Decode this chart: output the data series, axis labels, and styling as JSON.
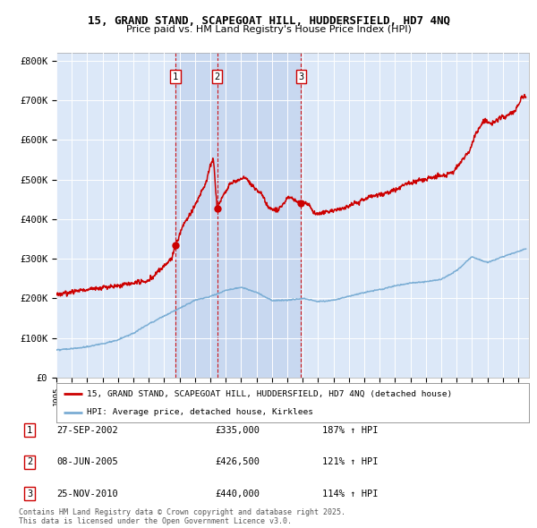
{
  "title_line1": "15, GRAND STAND, SCAPEGOAT HILL, HUDDERSFIELD, HD7 4NQ",
  "title_line2": "Price paid vs. HM Land Registry's House Price Index (HPI)",
  "plot_bg_color": "#dce8f8",
  "ylabel_ticks": [
    "£0",
    "£100K",
    "£200K",
    "£300K",
    "£400K",
    "£500K",
    "£600K",
    "£700K",
    "£800K"
  ],
  "ytick_values": [
    0,
    100000,
    200000,
    300000,
    400000,
    500000,
    600000,
    700000,
    800000
  ],
  "ylim": [
    0,
    820000
  ],
  "xlim_start": 1995.0,
  "xlim_end": 2025.7,
  "legend_line1": "15, GRAND STAND, SCAPEGOAT HILL, HUDDERSFIELD, HD7 4NQ (detached house)",
  "legend_line2": "HPI: Average price, detached house, Kirklees",
  "transactions": [
    {
      "num": 1,
      "date": "27-SEP-2002",
      "price": 335000,
      "hpi_pct": "187%",
      "x": 2002.74
    },
    {
      "num": 2,
      "date": "08-JUN-2005",
      "price": 426500,
      "hpi_pct": "121%",
      "x": 2005.44
    },
    {
      "num": 3,
      "date": "25-NOV-2010",
      "price": 440000,
      "hpi_pct": "114%",
      "x": 2010.9
    }
  ],
  "footnote": "Contains HM Land Registry data © Crown copyright and database right 2025.\nThis data is licensed under the Open Government Licence v3.0.",
  "red_color": "#cc0000",
  "blue_color": "#7aadd4",
  "grid_color": "#ffffff",
  "vline_color": "#cc0000",
  "shade_color": "#c8d8f0",
  "hpi_knots_x": [
    1995,
    1996,
    1997,
    1998,
    1999,
    2000,
    2001,
    2002,
    2003,
    2004,
    2005,
    2006,
    2007,
    2008,
    2009,
    2010,
    2011,
    2012,
    2013,
    2014,
    2015,
    2016,
    2017,
    2018,
    2019,
    2020,
    2021,
    2022,
    2023,
    2024,
    2025.5
  ],
  "hpi_knots_y": [
    70000,
    73000,
    78000,
    85000,
    95000,
    112000,
    135000,
    155000,
    175000,
    195000,
    205000,
    220000,
    228000,
    215000,
    195000,
    195000,
    200000,
    192000,
    195000,
    205000,
    215000,
    222000,
    232000,
    238000,
    242000,
    248000,
    270000,
    305000,
    290000,
    305000,
    325000
  ],
  "prop_knots_x": [
    1995.0,
    1996.0,
    1997.0,
    1998.0,
    1999.0,
    2000.0,
    2001.0,
    2002.5,
    2002.74,
    2003.3,
    2003.8,
    2004.2,
    2004.7,
    2005.0,
    2005.2,
    2005.44,
    2005.6,
    2005.9,
    2006.3,
    2006.8,
    2007.3,
    2007.8,
    2008.3,
    2008.8,
    2009.3,
    2009.8,
    2010.0,
    2010.5,
    2010.9,
    2011.3,
    2011.8,
    2012.3,
    2012.8,
    2013.3,
    2013.8,
    2014.3,
    2014.8,
    2015.3,
    2015.8,
    2016.3,
    2016.8,
    2017.3,
    2017.8,
    2018.3,
    2018.8,
    2019.3,
    2019.8,
    2020.3,
    2020.8,
    2021.3,
    2021.8,
    2022.3,
    2022.8,
    2023.3,
    2023.8,
    2024.3,
    2024.8,
    2025.3
  ],
  "prop_knots_y": [
    210000,
    215000,
    222000,
    228000,
    232000,
    238000,
    245000,
    300000,
    335000,
    390000,
    420000,
    450000,
    490000,
    535000,
    555000,
    426500,
    440000,
    465000,
    490000,
    500000,
    505000,
    480000,
    465000,
    430000,
    420000,
    440000,
    455000,
    450000,
    440000,
    440000,
    415000,
    415000,
    420000,
    425000,
    430000,
    440000,
    445000,
    455000,
    460000,
    465000,
    470000,
    480000,
    490000,
    495000,
    500000,
    505000,
    510000,
    510000,
    520000,
    545000,
    570000,
    620000,
    650000,
    640000,
    655000,
    660000,
    675000,
    710000
  ]
}
